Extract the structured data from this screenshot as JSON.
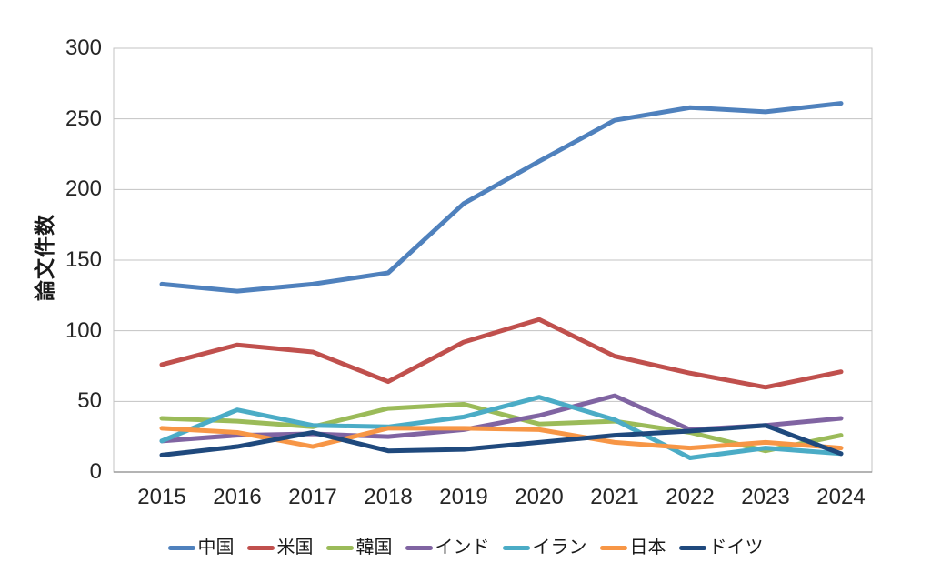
{
  "page": {
    "background": "#FFFFFF"
  },
  "chart_data": {
    "type": "line",
    "title": "",
    "xlabel": "",
    "ylabel": "論文件数",
    "categories": [
      "2015",
      "2016",
      "2017",
      "2018",
      "2019",
      "2020",
      "2021",
      "2022",
      "2023",
      "2024"
    ],
    "ylim": [
      0,
      300
    ],
    "yticks": [
      0,
      50,
      100,
      150,
      200,
      250,
      300
    ],
    "grid": true,
    "grid_color": "#C3C3C3",
    "axis_color": "#9B9B9B",
    "text_color": "#262626",
    "legend_position": "bottom",
    "series": [
      {
        "name": "中国",
        "color": "#4F81BD",
        "values": [
          133,
          128,
          133,
          141,
          190,
          220,
          249,
          258,
          255,
          261
        ]
      },
      {
        "name": "米国",
        "color": "#C0504D",
        "values": [
          76,
          90,
          85,
          64,
          92,
          108,
          82,
          70,
          60,
          71
        ]
      },
      {
        "name": "韓国",
        "color": "#9BBB59",
        "values": [
          38,
          36,
          32,
          45,
          48,
          34,
          36,
          28,
          15,
          26
        ]
      },
      {
        "name": "インド",
        "color": "#8064A2",
        "values": [
          22,
          26,
          27,
          25,
          30,
          40,
          54,
          30,
          33,
          38
        ]
      },
      {
        "name": "イラン",
        "color": "#4BACC6",
        "values": [
          22,
          44,
          33,
          32,
          39,
          53,
          37,
          10,
          17,
          13
        ]
      },
      {
        "name": "日本",
        "color": "#F79646",
        "values": [
          31,
          28,
          18,
          31,
          31,
          30,
          21,
          17,
          21,
          17
        ]
      },
      {
        "name": "ドイツ",
        "color": "#1F497D",
        "values": [
          12,
          18,
          28,
          15,
          16,
          21,
          26,
          29,
          33,
          13
        ]
      }
    ]
  }
}
